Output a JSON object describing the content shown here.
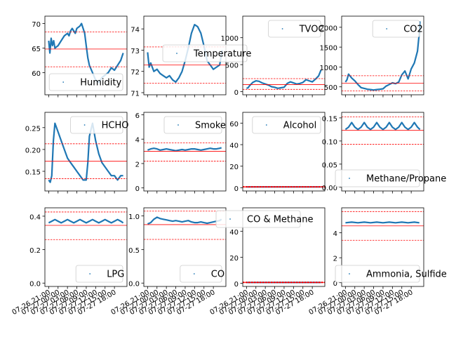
{
  "figure": {
    "x_tick_labels": [
      "07-26 21:00",
      "07-27 00:00",
      "07-27 03:00",
      "07-27 06:00",
      "07-27 09:00",
      "07-27 12:00",
      "07-27 15:00",
      "07-27 18:00"
    ],
    "line_color": "#1f77b4",
    "ref_line_color": "#ff0000"
  },
  "chart_data": [
    {
      "type": "line",
      "legend": "Humidity",
      "legend_loc": "lower-right",
      "ylim": [
        55.5,
        71.5
      ],
      "yticks": [
        60,
        65,
        70
      ],
      "ytick_labels": [
        "60",
        "65",
        "70"
      ],
      "ref_lines": [
        68.3,
        64.8,
        61.2
      ],
      "series": [
        {
          "x": [
            0,
            0.4,
            0.8,
            1.2,
            1.6,
            2.0,
            3.0,
            4.0,
            5.0,
            6.0,
            6.5,
            7.0,
            7.5,
            8.0,
            8.5,
            9.0,
            10.0,
            10.5,
            11.0,
            11.5,
            12.0,
            12.5,
            13.0,
            14.0,
            15.0,
            16.0,
            17.0,
            18.0,
            19.0,
            20.0,
            21.0,
            22.0,
            23.0,
            23.8
          ],
          "y": [
            66.5,
            64,
            67,
            65.5,
            66.5,
            65,
            65.5,
            66.5,
            67.5,
            68,
            67.5,
            68.5,
            69,
            68.5,
            68,
            69,
            69.5,
            70,
            69,
            68,
            65.5,
            63,
            61.5,
            60,
            58.5,
            58,
            59,
            59.5,
            60,
            61,
            60.5,
            61.5,
            62.5,
            64
          ]
        }
      ]
    },
    {
      "type": "line",
      "legend": "Temperature",
      "legend_loc": "upper-right",
      "ylim": [
        70.9,
        74.6
      ],
      "yticks": [
        71,
        72,
        73,
        74
      ],
      "ytick_labels": [
        "71",
        "72",
        "73",
        "74"
      ],
      "ref_lines": [
        73.15,
        72.3,
        71.45
      ],
      "series": [
        {
          "x": [
            0,
            0.5,
            1,
            2,
            3,
            4,
            5,
            6,
            7,
            8,
            9,
            10,
            11,
            12,
            13,
            14,
            15,
            16,
            17,
            18,
            19,
            20,
            21,
            22,
            23,
            23.8
          ],
          "y": [
            72.9,
            72.2,
            72.4,
            72.0,
            72.1,
            71.9,
            71.8,
            71.7,
            71.8,
            71.6,
            71.5,
            71.7,
            72.0,
            72.5,
            73.1,
            73.8,
            74.2,
            74.1,
            73.8,
            73.2,
            72.5,
            72.3,
            72.1,
            72.2,
            72.3,
            73.0
          ]
        }
      ]
    },
    {
      "type": "line",
      "legend": "TVOC",
      "legend_loc": "upper-right",
      "ylim": [
        -60,
        1400
      ],
      "yticks": [
        0,
        500,
        1000
      ],
      "ytick_labels": [
        "0",
        "500",
        "1000"
      ],
      "ref_lines": [
        240,
        130,
        40
      ],
      "series": [
        {
          "x": [
            0,
            0.5,
            1,
            2,
            3,
            4,
            5,
            6,
            7,
            8,
            9,
            10,
            11,
            12,
            13,
            14,
            15,
            16,
            17,
            18,
            19,
            20,
            21,
            22,
            23,
            23.8
          ],
          "y": [
            60,
            70,
            110,
            170,
            200,
            190,
            160,
            140,
            120,
            90,
            80,
            60,
            70,
            80,
            150,
            180,
            160,
            140,
            150,
            170,
            220,
            200,
            180,
            230,
            290,
            400
          ]
        }
      ]
    },
    {
      "type": "line",
      "legend": "CO2",
      "legend_loc": "upper-right",
      "ylim": [
        300,
        2280
      ],
      "yticks": [
        500,
        1000,
        1500,
        2000
      ],
      "ytick_labels": [
        "500",
        "1000",
        "1500",
        "2000"
      ],
      "ref_lines": [
        780,
        590,
        400
      ],
      "series": [
        {
          "x": [
            0,
            0.5,
            1,
            2,
            3,
            4,
            5,
            6,
            7,
            8,
            9,
            10,
            11,
            12,
            13,
            14,
            15,
            16,
            17,
            18,
            19,
            20,
            21,
            22,
            23,
            23.5,
            23.8
          ],
          "y": [
            620,
            680,
            820,
            720,
            650,
            560,
            480,
            460,
            440,
            430,
            420,
            430,
            440,
            450,
            520,
            560,
            600,
            580,
            620,
            800,
            900,
            700,
            950,
            1100,
            1400,
            1800,
            2150
          ]
        }
      ]
    },
    {
      "type": "line",
      "legend": "HCHO",
      "legend_loc": "upper-right",
      "ylim": [
        0.105,
        0.285
      ],
      "yticks": [
        0.15,
        0.2,
        0.25
      ],
      "ytick_labels": [
        "0.15",
        "0.20",
        "0.25"
      ],
      "ref_lines": [
        0.213,
        0.173,
        0.133
      ],
      "series": [
        {
          "x": [
            0,
            0.5,
            1,
            1.5,
            2,
            3,
            4,
            5,
            6,
            7,
            8,
            9,
            10,
            11,
            12,
            12.5,
            13,
            14,
            15,
            16,
            17,
            18,
            19,
            20,
            21,
            22,
            23,
            23.8
          ],
          "y": [
            0.13,
            0.125,
            0.14,
            0.22,
            0.26,
            0.24,
            0.22,
            0.2,
            0.18,
            0.17,
            0.16,
            0.15,
            0.14,
            0.13,
            0.13,
            0.17,
            0.23,
            0.26,
            0.22,
            0.19,
            0.17,
            0.16,
            0.15,
            0.14,
            0.14,
            0.13,
            0.14,
            0.14
          ]
        }
      ]
    },
    {
      "type": "line",
      "legend": "Smoke",
      "legend_loc": "upper-right",
      "ylim": [
        -0.25,
        6.2
      ],
      "yticks": [
        0,
        2,
        4,
        6
      ],
      "ytick_labels": [
        "0",
        "2",
        "4",
        "6"
      ],
      "ref_lines": [
        3.7,
        3.0,
        2.2
      ],
      "series": [
        {
          "x": [
            0,
            1,
            2,
            3,
            4,
            5,
            6,
            7,
            8,
            9,
            10,
            11,
            12,
            13,
            14,
            15,
            16,
            17,
            18,
            19,
            20,
            21,
            22,
            23,
            23.6
          ],
          "y": [
            3.1,
            3.2,
            3.25,
            3.2,
            3.1,
            3.15,
            3.2,
            3.15,
            3.1,
            3.05,
            3.1,
            3.15,
            3.1,
            3.15,
            3.2,
            3.2,
            3.15,
            3.1,
            3.15,
            3.2,
            3.25,
            3.2,
            3.2,
            3.25,
            3.3
          ]
        }
      ]
    },
    {
      "type": "line",
      "legend": "Alcohol",
      "legend_loc": "upper-right",
      "ylim": [
        -3,
        70
      ],
      "yticks": [
        0,
        20,
        40,
        60
      ],
      "ytick_labels": [
        "0",
        "20",
        "40",
        "60"
      ],
      "ref_lines": [
        1.2,
        0.8,
        0.4
      ],
      "series": [
        {
          "x": [
            0,
            4,
            8,
            12,
            16,
            20,
            23.8
          ],
          "y": [
            0.8,
            0.8,
            0.8,
            0.8,
            0.8,
            0.8,
            0.8
          ]
        }
      ]
    },
    {
      "type": "line",
      "legend": "Methane/Propane",
      "legend_loc": "lower-right",
      "ylim": [
        -0.008,
        0.162
      ],
      "yticks": [
        0.0,
        0.05,
        0.1,
        0.15
      ],
      "ytick_labels": [
        "0.00",
        "0.05",
        "0.10",
        "0.15"
      ],
      "ref_lines": [
        0.152,
        0.123,
        0.093
      ],
      "series": [
        {
          "x": [
            0,
            1,
            2,
            3,
            4,
            5,
            6,
            7,
            8,
            9,
            10,
            11,
            12,
            13,
            14,
            15,
            16,
            17,
            18,
            19,
            20,
            21,
            22,
            23,
            23.8
          ],
          "y": [
            0.125,
            0.13,
            0.14,
            0.13,
            0.125,
            0.13,
            0.14,
            0.13,
            0.125,
            0.13,
            0.14,
            0.13,
            0.125,
            0.13,
            0.14,
            0.13,
            0.125,
            0.13,
            0.14,
            0.13,
            0.125,
            0.13,
            0.14,
            0.13,
            0.125
          ]
        }
      ]
    },
    {
      "type": "line",
      "legend": "LPG",
      "legend_loc": "lower-right",
      "ylim": [
        -0.02,
        0.45
      ],
      "yticks": [
        0.0,
        0.2,
        0.4
      ],
      "ytick_labels": [
        "0.0",
        "0.2",
        "0.4"
      ],
      "ref_lines": [
        0.425,
        0.345,
        0.26
      ],
      "series": [
        {
          "x": [
            0,
            1,
            2,
            3,
            4,
            5,
            6,
            7,
            8,
            9,
            10,
            11,
            12,
            13,
            14,
            15,
            16,
            17,
            18,
            19,
            20,
            21,
            22,
            23,
            23.8
          ],
          "y": [
            0.36,
            0.37,
            0.38,
            0.37,
            0.36,
            0.37,
            0.38,
            0.37,
            0.36,
            0.37,
            0.38,
            0.37,
            0.36,
            0.37,
            0.38,
            0.37,
            0.36,
            0.37,
            0.38,
            0.37,
            0.36,
            0.37,
            0.38,
            0.37,
            0.36
          ]
        }
      ]
    },
    {
      "type": "line",
      "legend": "CO",
      "legend_loc": "lower-right",
      "ylim": [
        -0.05,
        1.12
      ],
      "yticks": [
        0.0,
        0.5,
        1.0
      ],
      "ytick_labels": [
        "0.0",
        "0.5",
        "1.0"
      ],
      "ref_lines": [
        1.07,
        0.87,
        0.65
      ],
      "series": [
        {
          "x": [
            0,
            1,
            2,
            3,
            4,
            5,
            6,
            7,
            8,
            9,
            10,
            11,
            12,
            13,
            14,
            15,
            16,
            17,
            18,
            19,
            20,
            21,
            22,
            23,
            23.6
          ],
          "y": [
            0.88,
            0.9,
            0.95,
            0.98,
            0.96,
            0.95,
            0.94,
            0.93,
            0.92,
            0.93,
            0.92,
            0.91,
            0.92,
            0.93,
            0.91,
            0.9,
            0.9,
            0.91,
            0.9,
            0.89,
            0.9,
            0.91,
            0.92,
            0.93,
            0.95
          ]
        }
      ]
    },
    {
      "type": "line",
      "legend": "CO & Methane",
      "legend_loc": "upper-right",
      "ylim": [
        -2.5,
        58
      ],
      "yticks": [
        0,
        20,
        40
      ],
      "ytick_labels": [
        "0",
        "20",
        "40"
      ],
      "ref_lines": [
        1.0,
        0.6,
        0.3
      ],
      "series": [
        {
          "x": [
            0,
            4,
            8,
            12,
            16,
            20,
            23.8
          ],
          "y": [
            0.6,
            0.6,
            0.6,
            0.6,
            0.6,
            0.6,
            0.6
          ]
        }
      ]
    },
    {
      "type": "line",
      "legend": "Ammonia, Sulfide",
      "legend_loc": "lower-right",
      "ylim": [
        -0.3,
        6.0
      ],
      "yticks": [
        0,
        2,
        4
      ],
      "ytick_labels": [
        "0",
        "2",
        "4"
      ],
      "ref_lines": [
        5.7,
        4.55,
        3.4
      ],
      "series": [
        {
          "x": [
            0,
            2,
            4,
            6,
            8,
            10,
            12,
            14,
            16,
            18,
            20,
            22,
            23.6
          ],
          "y": [
            4.8,
            4.85,
            4.8,
            4.85,
            4.8,
            4.85,
            4.8,
            4.85,
            4.8,
            4.85,
            4.8,
            4.85,
            4.8
          ]
        }
      ]
    }
  ]
}
